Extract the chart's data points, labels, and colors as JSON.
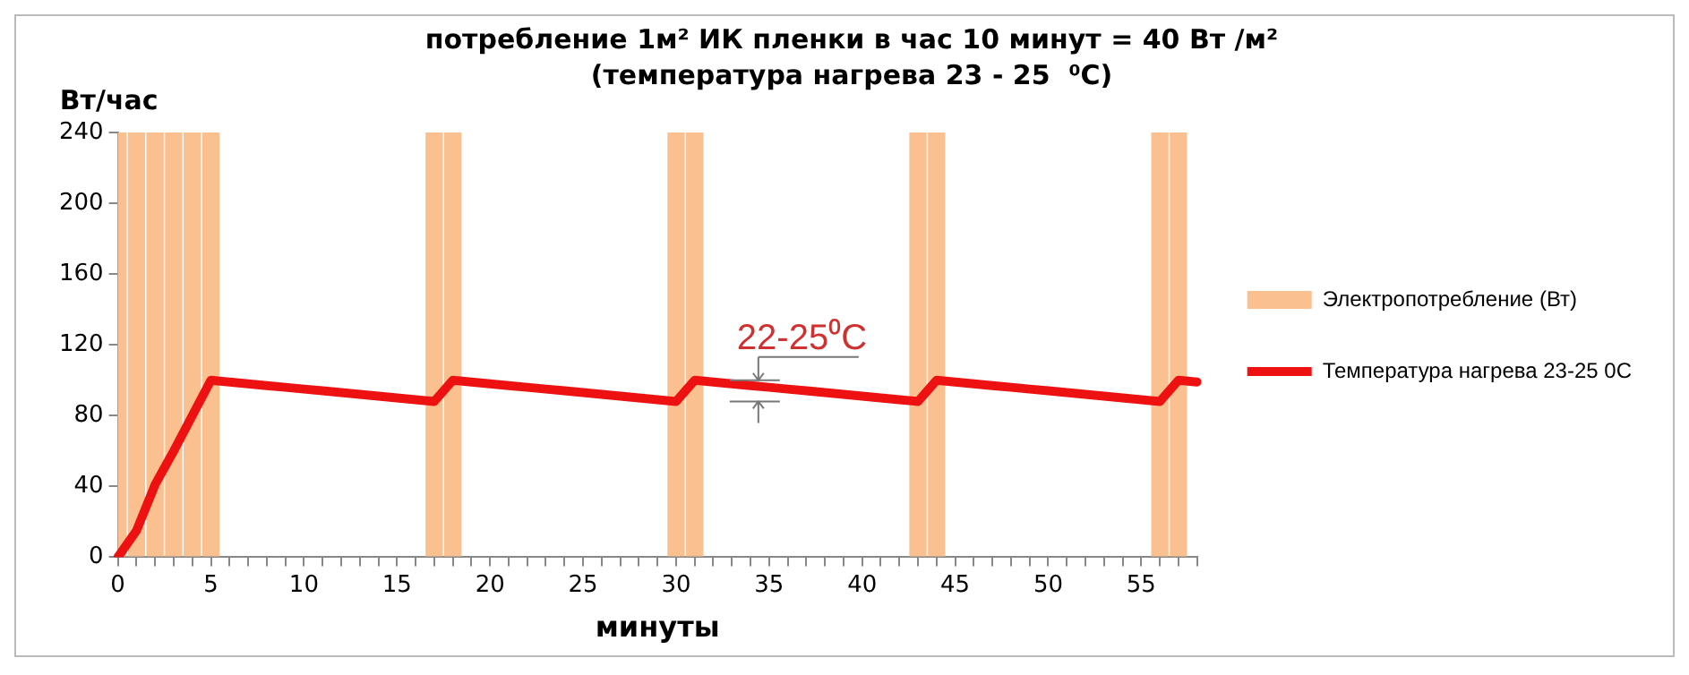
{
  "chart_data": {
    "type": "bar",
    "title": "потребление 1м² ИК пленки в час 10 минут = 40 Вт /м²",
    "subtitle": "(температура нагрева 23 - 25  ⁰С)",
    "xlabel": "минуты",
    "ylabel": "Вт/час",
    "categories": [
      "0",
      null,
      null,
      null,
      null,
      "5",
      null,
      null,
      null,
      null,
      "10",
      null,
      null,
      null,
      null,
      "15",
      null,
      null,
      null,
      null,
      "20",
      null,
      null,
      null,
      null,
      "25",
      null,
      null,
      null,
      null,
      "30",
      null,
      null,
      null,
      null,
      "35",
      null,
      null,
      null,
      null,
      "40",
      null,
      null,
      null,
      null,
      "45",
      null,
      null,
      null,
      null,
      "50",
      null,
      null,
      null,
      null,
      "55",
      null,
      null,
      null
    ],
    "ylim": [
      0,
      240
    ],
    "yticks": [
      0,
      40,
      80,
      120,
      160,
      200,
      240
    ],
    "grid": false,
    "legend": "right",
    "series": [
      {
        "name": "Электропотребление (Вт)",
        "color": "#fac090",
        "values": [
          240,
          240,
          240,
          240,
          240,
          240,
          null,
          null,
          null,
          null,
          null,
          null,
          null,
          null,
          null,
          null,
          null,
          240,
          240,
          null,
          null,
          null,
          null,
          null,
          null,
          null,
          null,
          null,
          null,
          null,
          240,
          240,
          null,
          null,
          null,
          null,
          null,
          null,
          null,
          null,
          null,
          null,
          null,
          240,
          240,
          null,
          null,
          null,
          null,
          null,
          null,
          null,
          null,
          null,
          null,
          null,
          240,
          240,
          null
        ]
      },
      {
        "name": "Температура нагрева 23-25 0С",
        "type": "line",
        "color": "#ee1111",
        "line_style": "solid",
        "marker": "none",
        "values": [
          0,
          15,
          41,
          60,
          80,
          100,
          99,
          98,
          97,
          96,
          95,
          94,
          93,
          92,
          91,
          90,
          89,
          88,
          100,
          99,
          98,
          97,
          96,
          95,
          94,
          93,
          92,
          91,
          90,
          89,
          88,
          100,
          99,
          98,
          97,
          96,
          95,
          94,
          93,
          92,
          91,
          90,
          89,
          88,
          100,
          99,
          98,
          97,
          96,
          95,
          94,
          93,
          92,
          91,
          90,
          89,
          88,
          100,
          99
        ]
      }
    ],
    "annotations": [
      {
        "text": "22-25⁰C",
        "x": "35",
        "y": 100
      }
    ]
  }
}
